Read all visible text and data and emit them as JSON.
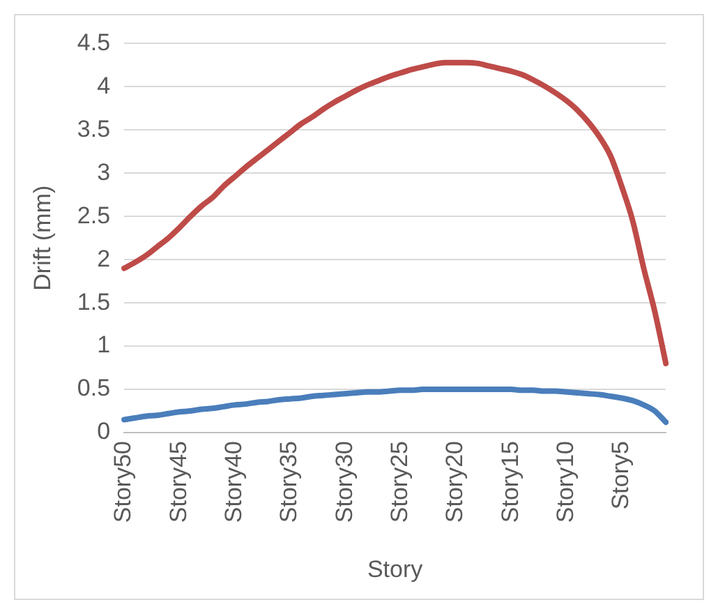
{
  "chart_data": {
    "type": "line",
    "xlabel": "Story",
    "ylabel": "Drift (mm)",
    "categories": [
      "Story50",
      null,
      null,
      null,
      null,
      "Story45",
      null,
      null,
      null,
      null,
      "Story40",
      null,
      null,
      null,
      null,
      "Story35",
      null,
      null,
      null,
      null,
      "Story30",
      null,
      null,
      null,
      null,
      "Story25",
      null,
      null,
      null,
      null,
      "Story20",
      null,
      null,
      null,
      null,
      "Story15",
      null,
      null,
      null,
      null,
      "Story10",
      null,
      null,
      null,
      null,
      "Story5",
      null,
      null,
      null,
      null
    ],
    "series": [
      {
        "color": "#4a7ebb",
        "values": [
          0.15,
          0.17,
          0.19,
          0.2,
          0.22,
          0.24,
          0.25,
          0.27,
          0.28,
          0.3,
          0.32,
          0.33,
          0.35,
          0.36,
          0.38,
          0.39,
          0.4,
          0.42,
          0.43,
          0.44,
          0.45,
          0.46,
          0.47,
          0.47,
          0.48,
          0.49,
          0.49,
          0.5,
          0.5,
          0.5,
          0.5,
          0.5,
          0.5,
          0.5,
          0.5,
          0.5,
          0.49,
          0.49,
          0.48,
          0.48,
          0.47,
          0.46,
          0.45,
          0.44,
          0.42,
          0.4,
          0.37,
          0.32,
          0.25,
          0.12
        ]
      },
      {
        "color": "#be4b48",
        "values": [
          1.9,
          1.97,
          2.05,
          2.15,
          2.25,
          2.37,
          2.5,
          2.62,
          2.72,
          2.85,
          2.96,
          3.07,
          3.17,
          3.27,
          3.37,
          3.47,
          3.57,
          3.65,
          3.74,
          3.82,
          3.89,
          3.96,
          4.02,
          4.07,
          4.12,
          4.16,
          4.2,
          4.23,
          4.26,
          4.28,
          4.28,
          4.28,
          4.27,
          4.24,
          4.21,
          4.18,
          4.14,
          4.08,
          4.01,
          3.93,
          3.84,
          3.73,
          3.59,
          3.42,
          3.2,
          2.85,
          2.45,
          1.9,
          1.4,
          0.8
        ]
      }
    ],
    "ylim": [
      0,
      4.5
    ],
    "yticks": [
      0,
      0.5,
      1,
      1.5,
      2,
      2.5,
      3,
      3.5,
      4,
      4.5
    ],
    "grid": "y",
    "legend": false,
    "marker": "none",
    "line_style": "solid"
  }
}
